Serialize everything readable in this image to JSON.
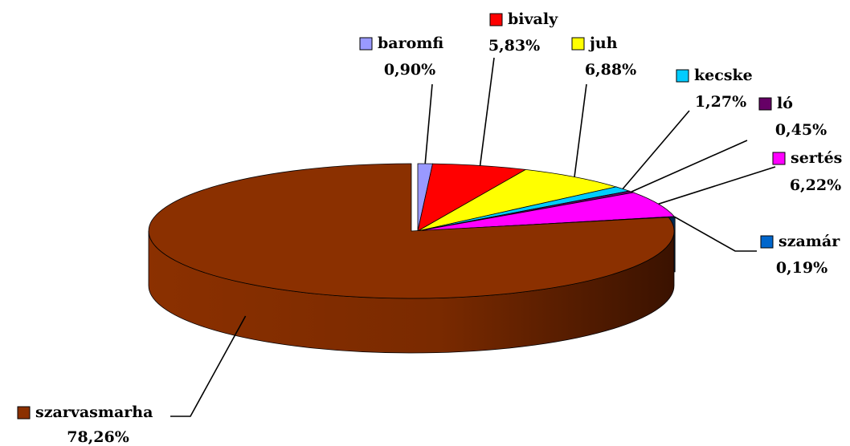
{
  "chart_data": {
    "type": "pie3d",
    "categories": [
      "baromfi",
      "bivaly",
      "juh",
      "kecske",
      "ló",
      "sertés",
      "szamár",
      "szarvasmarha"
    ],
    "values": [
      0.9,
      5.83,
      6.88,
      1.27,
      0.45,
      6.22,
      0.19,
      78.26
    ],
    "value_labels": [
      "0,90%",
      "5,83%",
      "6,88%",
      "1,27%",
      "0,45%",
      "6,22%",
      "0,19%",
      "78,26%"
    ],
    "colors": [
      "#9999ff",
      "#ff0000",
      "#ffff00",
      "#00ccff",
      "#660066",
      "#ff00ff",
      "#0066cc",
      "#8b3000"
    ]
  }
}
